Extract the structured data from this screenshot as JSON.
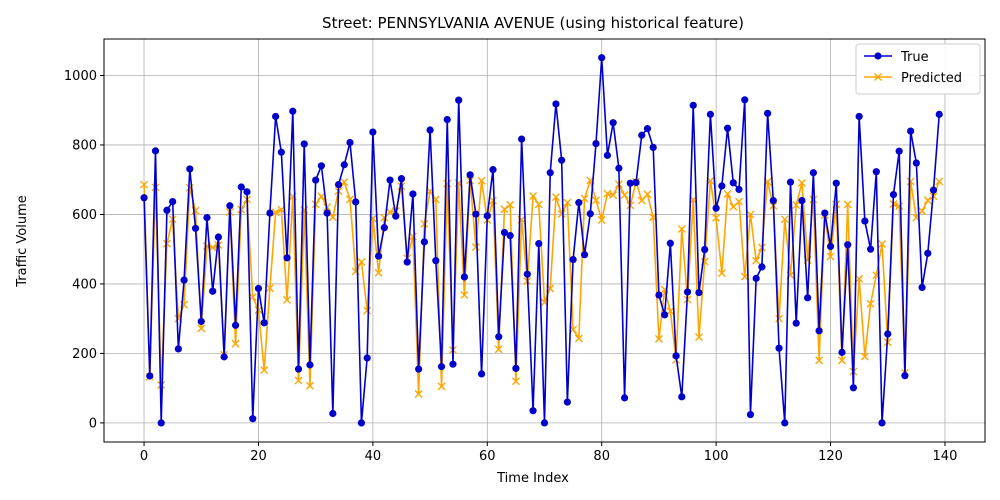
{
  "chart_data": {
    "type": "line",
    "title": "Street: PENNSYLVANIA AVENUE (using historical feature)",
    "xlabel": "Time Index",
    "ylabel": "Traffic Volume",
    "xlim": [
      -7,
      147
    ],
    "ylim": [
      -55,
      1105
    ],
    "xticks": [
      0,
      20,
      40,
      60,
      80,
      100,
      120,
      140
    ],
    "yticks": [
      0,
      200,
      400,
      600,
      800,
      1000
    ],
    "grid": true,
    "legend_position": "top-right",
    "colors": {
      "True": "#0000cc",
      "Predicted": "#ffa500"
    },
    "x": [
      0,
      1,
      2,
      3,
      4,
      5,
      6,
      7,
      8,
      9,
      10,
      11,
      12,
      13,
      14,
      15,
      16,
      17,
      18,
      19,
      20,
      21,
      22,
      23,
      24,
      25,
      26,
      27,
      28,
      29,
      30,
      31,
      32,
      33,
      34,
      35,
      36,
      37,
      38,
      39,
      40,
      41,
      42,
      43,
      44,
      45,
      46,
      47,
      48,
      49,
      50,
      51,
      52,
      53,
      54,
      55,
      56,
      57,
      58,
      59,
      60,
      61,
      62,
      63,
      64,
      65,
      66,
      67,
      68,
      69,
      70,
      71,
      72,
      73,
      74,
      75,
      76,
      77,
      78,
      79,
      80,
      81,
      82,
      83,
      84,
      85,
      86,
      87,
      88,
      89,
      90,
      91,
      92,
      93,
      94,
      95,
      96,
      97,
      98,
      99,
      100,
      101,
      102,
      103,
      104,
      105,
      106,
      107,
      108,
      109,
      110,
      111,
      112,
      113,
      114,
      115,
      116,
      117,
      118,
      119,
      120,
      121,
      122,
      123,
      124,
      125,
      126,
      127,
      128,
      129,
      130,
      131,
      132,
      133,
      134,
      135,
      136,
      137,
      138,
      139
    ],
    "series": [
      {
        "name": "True",
        "marker": "circle",
        "values": [
          648,
          135,
          783,
          0,
          612,
          637,
          213,
          411,
          731,
          560,
          292,
          591,
          379,
          535,
          190,
          625,
          281,
          679,
          665,
          12,
          387,
          288,
          604,
          882,
          779,
          475,
          897,
          155,
          803,
          167,
          699,
          740,
          604,
          27,
          686,
          743,
          807,
          636,
          0,
          187,
          837,
          480,
          562,
          699,
          595,
          703,
          463,
          659,
          155,
          521,
          843,
          467,
          162,
          873,
          169,
          929,
          420,
          714,
          601,
          141,
          596,
          729,
          248,
          548,
          539,
          157,
          817,
          428,
          35,
          516,
          0,
          720,
          918,
          756,
          60,
          470,
          634,
          484,
          602,
          804,
          1051,
          770,
          864,
          733,
          72,
          690,
          692,
          828,
          847,
          793,
          368,
          311,
          517,
          193,
          75,
          377,
          914,
          375,
          499,
          888,
          618,
          682,
          848,
          691,
          672,
          930,
          24,
          416,
          449,
          891,
          640,
          215,
          0,
          693,
          287,
          640,
          360,
          720,
          265,
          604,
          508,
          690,
          203,
          513,
          101,
          882,
          581,
          500,
          723,
          0,
          256,
          657,
          782,
          136,
          840,
          748,
          390,
          488,
          670,
          888
        ]
      },
      {
        "name": "Predicted",
        "marker": "x",
        "values": [
          686,
          133,
          678,
          109,
          516,
          586,
          300,
          340,
          677,
          611,
          272,
          509,
          505,
          512,
          196,
          607,
          228,
          614,
          643,
          362,
          325,
          152,
          388,
          606,
          614,
          354,
          652,
          122,
          613,
          107,
          629,
          652,
          621,
          592,
          667,
          693,
          643,
          436,
          463,
          323,
          588,
          432,
          591,
          607,
          610,
          681,
          474,
          537,
          83,
          573,
          667,
          643,
          105,
          689,
          210,
          690,
          368,
          698,
          506,
          697,
          584,
          640,
          212,
          615,
          628,
          120,
          585,
          408,
          653,
          629,
          347,
          387,
          650,
          601,
          634,
          269,
          243,
          646,
          698,
          641,
          584,
          660,
          656,
          687,
          656,
          626,
          694,
          640,
          658,
          592,
          242,
          384,
          322,
          181,
          558,
          355,
          642,
          247,
          464,
          697,
          590,
          431,
          659,
          622,
          637,
          421,
          600,
          467,
          505,
          694,
          625,
          300,
          586,
          425,
          627,
          691,
          469,
          643,
          180,
          598,
          479,
          629,
          180,
          629,
          148,
          415,
          191,
          343,
          425,
          515,
          232,
          630,
          624,
          144,
          695,
          591,
          610,
          641,
          652,
          695
        ]
      }
    ]
  }
}
